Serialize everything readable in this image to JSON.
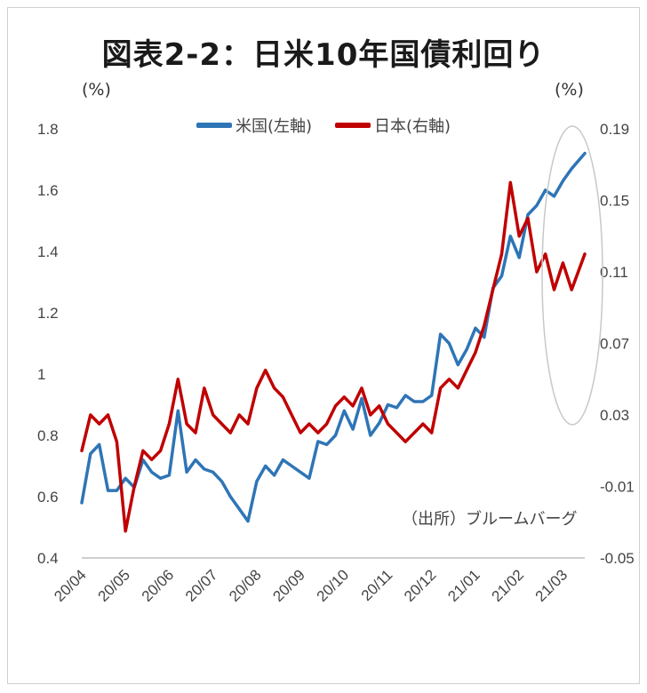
{
  "chart_data": {
    "type": "line",
    "title": "図表2-2：日米10年国債利回り",
    "left_unit": "(%)",
    "right_unit": "(%)",
    "source": "（出所）ブルームバーグ",
    "x_labels": [
      "20/04",
      "20/05",
      "20/06",
      "20/07",
      "20/08",
      "20/09",
      "20/10",
      "20/11",
      "20/12",
      "21/01",
      "21/02",
      "21/03"
    ],
    "y_left_ticks": [
      "1.8",
      "1.6",
      "1.4",
      "1.2",
      "1",
      "0.8",
      "0.6",
      "0.4"
    ],
    "y_right_ticks": [
      "0.19",
      "0.15",
      "0.11",
      "0.07",
      "0.03",
      "-0.01",
      "-0.05"
    ],
    "ylim_left": [
      0.4,
      1.8
    ],
    "ylim_right": [
      -0.05,
      0.19
    ],
    "annotation": "circle around 21/02–21/03 peak",
    "series": [
      {
        "name": "米国(左軸)",
        "axis": "left",
        "color": "#2e75b6",
        "x": [
          0,
          0.2,
          0.4,
          0.6,
          0.8,
          1.0,
          1.2,
          1.4,
          1.6,
          1.8,
          2.0,
          2.2,
          2.4,
          2.6,
          2.8,
          3.0,
          3.2,
          3.4,
          3.6,
          3.8,
          4.0,
          4.2,
          4.4,
          4.6,
          4.8,
          5.0,
          5.2,
          5.4,
          5.6,
          5.8,
          6.0,
          6.2,
          6.4,
          6.6,
          6.8,
          7.0,
          7.2,
          7.4,
          7.6,
          7.8,
          8.0,
          8.2,
          8.4,
          8.6,
          8.8,
          9.0,
          9.2,
          9.4,
          9.6,
          9.8,
          10.0,
          10.2,
          10.4,
          10.6,
          10.8,
          11.0,
          11.2,
          11.5
        ],
        "values": [
          0.58,
          0.74,
          0.77,
          0.62,
          0.62,
          0.66,
          0.63,
          0.72,
          0.68,
          0.66,
          0.67,
          0.88,
          0.68,
          0.72,
          0.69,
          0.68,
          0.65,
          0.6,
          0.56,
          0.52,
          0.65,
          0.7,
          0.67,
          0.72,
          0.7,
          0.68,
          0.66,
          0.78,
          0.77,
          0.8,
          0.88,
          0.82,
          0.92,
          0.8,
          0.84,
          0.9,
          0.89,
          0.93,
          0.91,
          0.91,
          0.93,
          1.13,
          1.1,
          1.03,
          1.08,
          1.15,
          1.12,
          1.28,
          1.32,
          1.45,
          1.38,
          1.52,
          1.55,
          1.6,
          1.58,
          1.63,
          1.67,
          1.72
        ]
      },
      {
        "name": "日本(右軸)",
        "axis": "right",
        "color": "#c00000",
        "x": [
          0,
          0.2,
          0.4,
          0.6,
          0.8,
          1.0,
          1.2,
          1.4,
          1.6,
          1.8,
          2.0,
          2.2,
          2.4,
          2.6,
          2.8,
          3.0,
          3.2,
          3.4,
          3.6,
          3.8,
          4.0,
          4.2,
          4.4,
          4.6,
          4.8,
          5.0,
          5.2,
          5.4,
          5.6,
          5.8,
          6.0,
          6.2,
          6.4,
          6.6,
          6.8,
          7.0,
          7.2,
          7.4,
          7.6,
          7.8,
          8.0,
          8.2,
          8.4,
          8.6,
          8.8,
          9.0,
          9.2,
          9.4,
          9.6,
          9.8,
          10.0,
          10.2,
          10.4,
          10.6,
          10.8,
          11.0,
          11.2,
          11.5
        ],
        "values": [
          0.01,
          0.03,
          0.025,
          0.03,
          0.015,
          -0.035,
          -0.01,
          0.01,
          0.005,
          0.01,
          0.025,
          0.05,
          0.025,
          0.02,
          0.045,
          0.03,
          0.025,
          0.02,
          0.03,
          0.025,
          0.045,
          0.055,
          0.045,
          0.04,
          0.03,
          0.02,
          0.025,
          0.02,
          0.025,
          0.035,
          0.04,
          0.035,
          0.045,
          0.03,
          0.035,
          0.025,
          0.02,
          0.015,
          0.02,
          0.025,
          0.02,
          0.045,
          0.05,
          0.045,
          0.055,
          0.065,
          0.08,
          0.1,
          0.12,
          0.16,
          0.13,
          0.14,
          0.11,
          0.12,
          0.1,
          0.115,
          0.1,
          0.12
        ]
      }
    ]
  }
}
